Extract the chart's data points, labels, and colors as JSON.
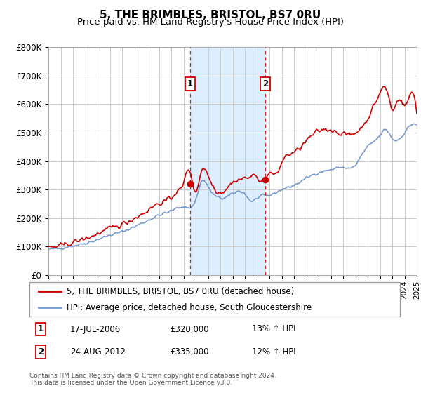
{
  "title": "5, THE BRIMBLES, BRISTOL, BS7 0RU",
  "subtitle": "Price paid vs. HM Land Registry's House Price Index (HPI)",
  "legend_label_red": "5, THE BRIMBLES, BRISTOL, BS7 0RU (detached house)",
  "legend_label_blue": "HPI: Average price, detached house, South Gloucestershire",
  "sale1_label": "1",
  "sale1_date": "17-JUL-2006",
  "sale1_price": "£320,000",
  "sale1_hpi": "13% ↑ HPI",
  "sale1_year": 2006.54,
  "sale1_value": 320000,
  "sale2_label": "2",
  "sale2_date": "24-AUG-2012",
  "sale2_price": "£335,000",
  "sale2_hpi": "12% ↑ HPI",
  "sale2_year": 2012.65,
  "sale2_value": 335000,
  "footer": "Contains HM Land Registry data © Crown copyright and database right 2024.\nThis data is licensed under the Open Government Licence v3.0.",
  "ylim": [
    0,
    800000
  ],
  "xlim": [
    1995,
    2025
  ],
  "yticks": [
    0,
    100000,
    200000,
    300000,
    400000,
    500000,
    600000,
    700000,
    800000
  ],
  "ytick_labels": [
    "£0",
    "£100K",
    "£200K",
    "£300K",
    "£400K",
    "£500K",
    "£600K",
    "£700K",
    "£800K"
  ],
  "color_red": "#cc0000",
  "color_blue": "#7799cc",
  "color_shade": "#ddeeff",
  "color_grid": "#cccccc",
  "color_box_border": "#cc0000",
  "bg_color": "#ffffff"
}
